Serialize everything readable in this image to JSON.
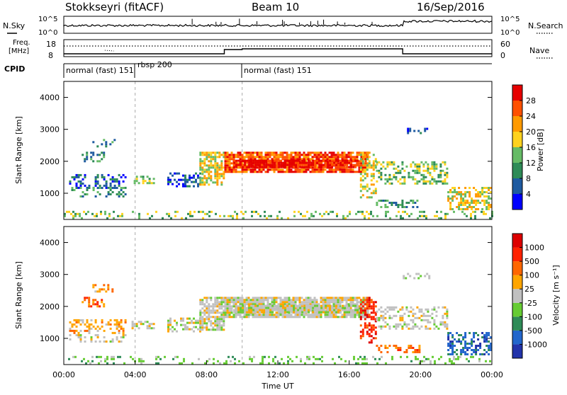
{
  "header": {
    "station": "Stokkseyri (fitACF)",
    "beam": "Beam 10",
    "date": "16/Sep/2016"
  },
  "strips": {
    "nsky_label": "N.Sky",
    "nsearch_label": "N.Search",
    "noise_ticks": [
      "10^5",
      "10^0"
    ],
    "freq_label_1": "Freq.",
    "freq_label_2": "[MHz]",
    "freq_ticks": [
      "18",
      "8"
    ],
    "nave_label": "Nave",
    "nave_ticks": [
      "60",
      "0"
    ],
    "cpid_label": "CPID"
  },
  "cpid_segments": [
    {
      "label": "normal (fast) 151",
      "start_hour": 0.0
    },
    {
      "label": "rbsp 200",
      "start_hour": 4.0
    },
    {
      "label": "normal (fast) 151",
      "start_hour": 10.0
    }
  ],
  "colorbars": {
    "power": {
      "label": "Power [dB]",
      "ticks": [
        "28",
        "24",
        "20",
        "16",
        "12",
        "8",
        "4"
      ],
      "colors": [
        "#0000ff",
        "#1e5aa0",
        "#2e8b57",
        "#66bb66",
        "#ffd21e",
        "#ff9a00",
        "#ff5000",
        "#e60000"
      ]
    },
    "velocity": {
      "label": "Velocity [m s⁻¹]",
      "ticks": [
        "1000",
        "500",
        "100",
        "25",
        "-25",
        "-100",
        "-500",
        "-1000"
      ],
      "colors": [
        "#2233aa",
        "#2266cc",
        "#2e8b57",
        "#66cc33",
        "#c0c0c0",
        "#ffa500",
        "#ff6600",
        "#ff2200",
        "#dd0000"
      ]
    }
  },
  "chart_data": [
    {
      "type": "heatmap",
      "panel": "power",
      "ylabel": "Slant Range [km]",
      "yticks": [
        "4000",
        "3000",
        "2000",
        "1000"
      ],
      "ylim": [
        180,
        4500
      ],
      "xlim": [
        0,
        24
      ],
      "colorbar_label": "Power [dB]"
    },
    {
      "type": "heatmap",
      "panel": "velocity",
      "ylabel": "Slant Range [km]",
      "yticks": [
        "4000",
        "3000",
        "2000",
        "1000"
      ],
      "ylim": [
        180,
        4500
      ],
      "xlim": [
        0,
        24
      ],
      "xlabel": "Time UT",
      "xticks": [
        "00:00",
        "04:00",
        "08:00",
        "12:00",
        "16:00",
        "20:00",
        "00:00"
      ],
      "colorbar_label": "Velocity [m s⁻¹]"
    }
  ]
}
